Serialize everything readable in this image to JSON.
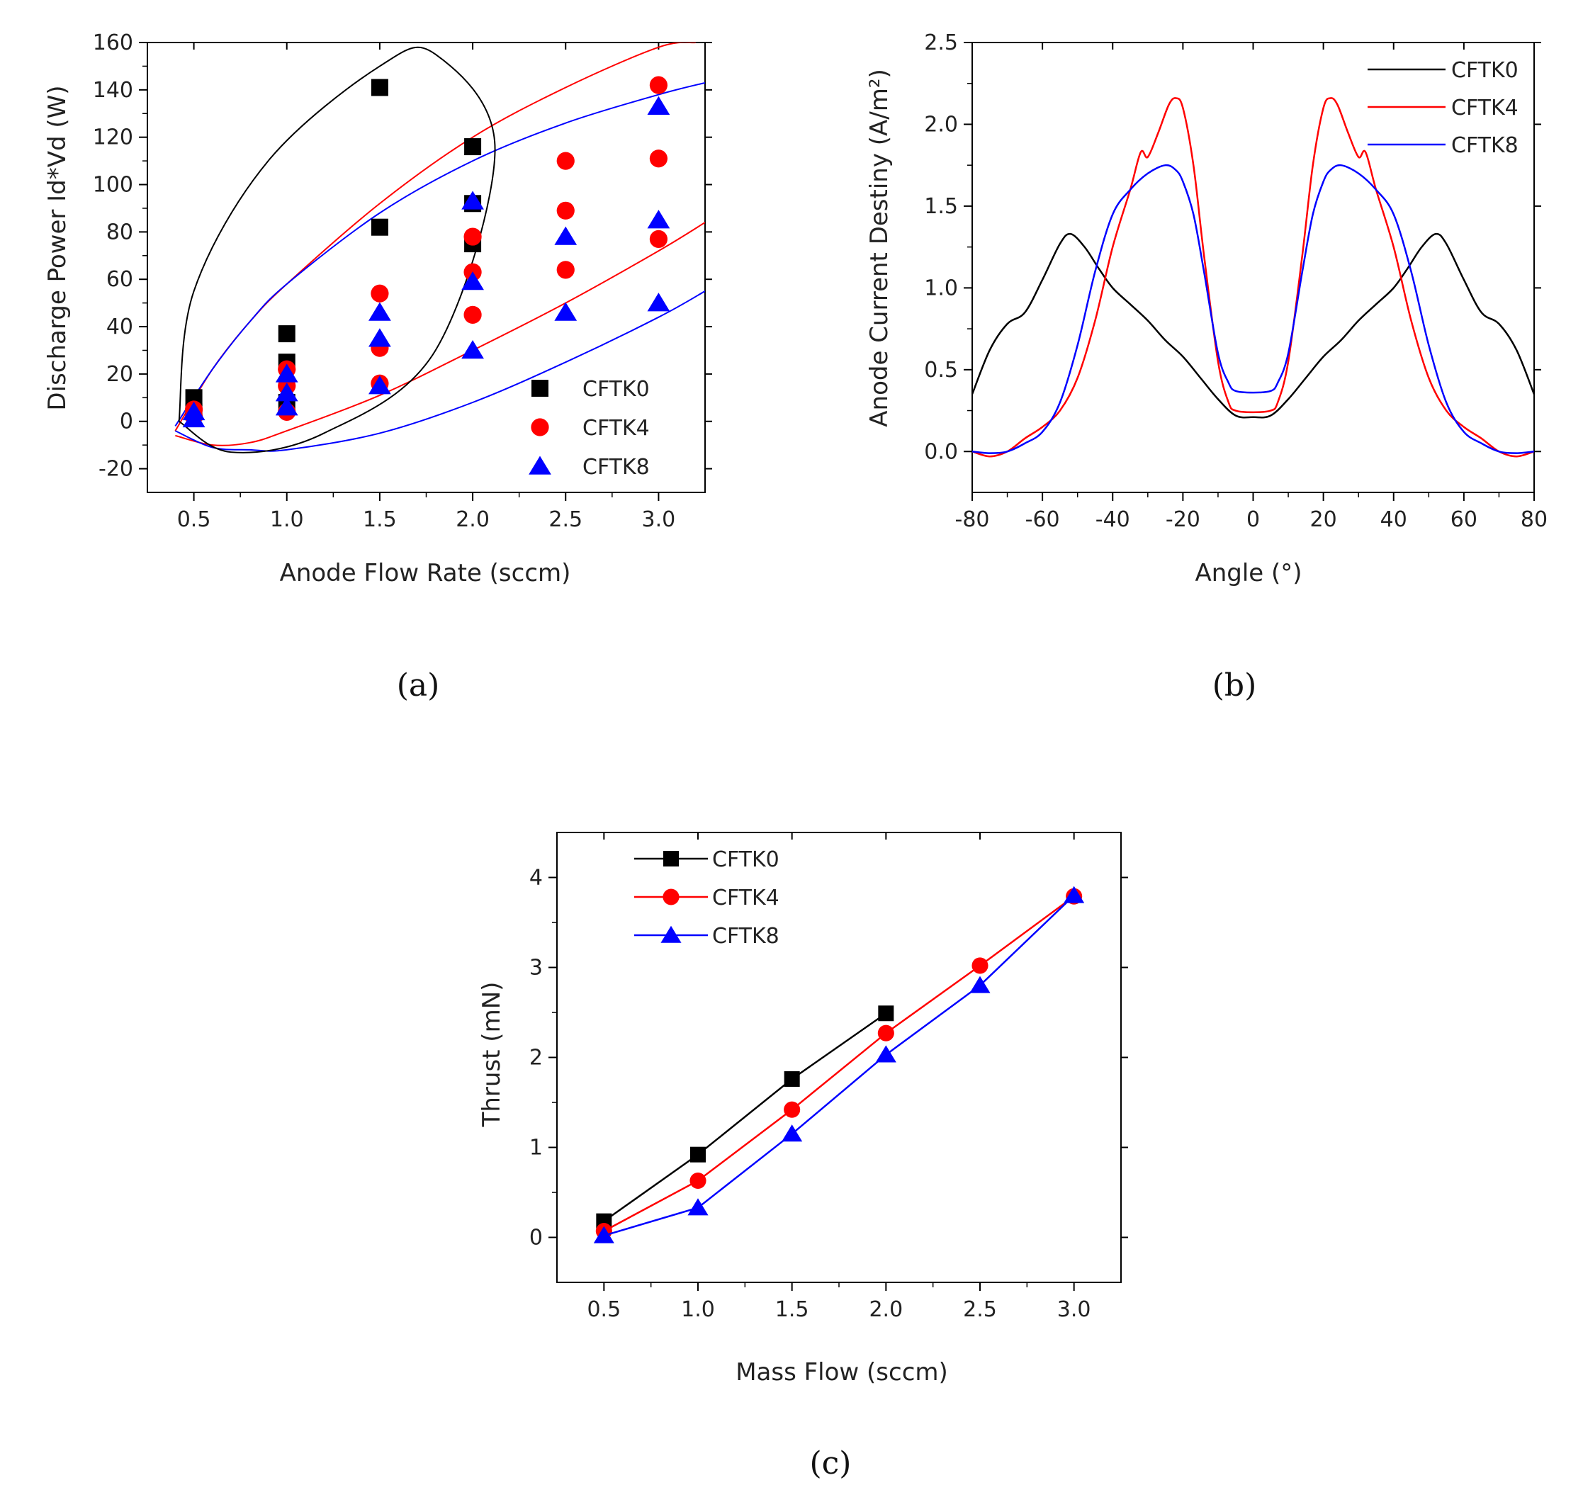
{
  "colors": {
    "CFTK0": "#000000",
    "CFTK4": "#ff0000",
    "CFTK8": "#0000ff"
  },
  "chart_data": [
    {
      "panel": "a",
      "caption": "(a)",
      "type": "scatter",
      "xlabel": "Anode Flow Rate (sccm)",
      "ylabel": "Discharge Power Id*Vd (W)",
      "xlim": [
        0.25,
        3.25
      ],
      "ylim": [
        -30,
        160
      ],
      "xticks": [
        "0.5",
        "1.0",
        "1.5",
        "2.0",
        "2.5",
        "3.0"
      ],
      "yticks": [
        "-20",
        "0",
        "20",
        "40",
        "60",
        "80",
        "100",
        "120",
        "140",
        "160"
      ],
      "legend": [
        "CFTK0",
        "CFTK4",
        "CFTK8"
      ],
      "series": [
        {
          "name": "CFTK0",
          "marker": "square",
          "x": [
            0.5,
            0.5,
            1.0,
            1.0,
            1.0,
            1.5,
            1.5,
            2.0,
            2.0,
            2.0
          ],
          "y": [
            10,
            4,
            37,
            25,
            8,
            141,
            82,
            116,
            92,
            75
          ]
        },
        {
          "name": "CFTK4",
          "marker": "circle",
          "x": [
            0.5,
            0.5,
            1.0,
            1.0,
            1.0,
            1.5,
            1.5,
            1.5,
            2.0,
            2.0,
            2.0,
            2.5,
            2.5,
            2.5,
            3.0,
            3.0,
            3.0
          ],
          "y": [
            5,
            2,
            22,
            15,
            4,
            54,
            31,
            16,
            78,
            63,
            45,
            110,
            89,
            64,
            142,
            111,
            77
          ]
        },
        {
          "name": "CFTK8",
          "marker": "triangle",
          "x": [
            0.5,
            0.5,
            1.0,
            1.0,
            1.0,
            1.5,
            1.5,
            1.5,
            2.0,
            2.0,
            2.0,
            2.5,
            2.5,
            3.0,
            3.0,
            3.0
          ],
          "y": [
            4,
            1,
            20,
            12,
            6,
            46,
            35,
            15,
            93,
            59,
            30,
            78,
            46,
            133,
            85,
            50
          ]
        }
      ],
      "fit_curves": [
        {
          "color": "CFTK4",
          "x": [
            0.4,
            0.6,
            0.8,
            1.0,
            1.5,
            2.0,
            2.5,
            3.0,
            3.2
          ],
          "y": [
            -4,
            22,
            42,
            58,
            92,
            120,
            141,
            158,
            160
          ]
        },
        {
          "color": "CFTK8",
          "x": [
            0.4,
            0.6,
            0.8,
            1.0,
            1.5,
            2.0,
            2.5,
            3.0,
            3.25
          ],
          "y": [
            -2,
            22,
            42,
            58,
            88,
            110,
            126,
            138,
            143
          ]
        },
        {
          "color": "CFTK4",
          "x": [
            0.4,
            0.6,
            0.8,
            1.0,
            1.5,
            2.0,
            2.5,
            3.0,
            3.25
          ],
          "y": [
            -6,
            -10,
            -9,
            -4,
            11,
            30,
            50,
            72,
            84
          ]
        },
        {
          "color": "CFTK8",
          "x": [
            0.4,
            0.6,
            0.8,
            1.0,
            1.5,
            2.0,
            2.5,
            3.0,
            3.25
          ],
          "y": [
            -4,
            -11,
            -12,
            -12,
            -5,
            8,
            25,
            44,
            55
          ]
        }
      ],
      "ellipse": {
        "center": [
          1.25,
          71
        ],
        "points": [
          [
            0.42,
            0
          ],
          [
            0.7,
            -13
          ],
          [
            1.2,
            -5
          ],
          [
            1.8,
            30
          ],
          [
            2.12,
            115
          ],
          [
            1.8,
            155
          ],
          [
            1.5,
            150
          ],
          [
            0.9,
            110
          ],
          [
            0.5,
            55
          ],
          [
            0.42,
            0
          ]
        ]
      }
    },
    {
      "panel": "b",
      "caption": "(b)",
      "type": "line",
      "xlabel": "Angle (°)",
      "ylabel": "Anode Current Destiny (A/m²)",
      "xlim": [
        -80,
        80
      ],
      "ylim": [
        -0.25,
        2.5
      ],
      "xticks": [
        "-80",
        "-60",
        "-40",
        "-20",
        "0",
        "20",
        "40",
        "60",
        "80"
      ],
      "yticks": [
        "0.0",
        "0.5",
        "1.0",
        "1.5",
        "2.0",
        "2.5"
      ],
      "legend": [
        "CFTK0",
        "CFTK4",
        "CFTK8"
      ],
      "series": [
        {
          "name": "CFTK0",
          "x": [
            -80,
            -75,
            -70,
            -65,
            -60,
            -55,
            -52,
            -48,
            -44,
            -40,
            -35,
            -30,
            -25,
            -20,
            -15,
            -10,
            -5,
            0,
            5,
            10,
            15,
            20,
            25,
            30,
            35,
            40,
            44,
            48,
            52,
            55,
            60,
            65,
            70,
            75,
            80
          ],
          "y": [
            0.35,
            0.62,
            0.78,
            0.85,
            1.05,
            1.27,
            1.33,
            1.25,
            1.12,
            1.0,
            0.9,
            0.8,
            0.68,
            0.58,
            0.45,
            0.32,
            0.22,
            0.21,
            0.22,
            0.32,
            0.45,
            0.58,
            0.68,
            0.8,
            0.9,
            1.0,
            1.12,
            1.25,
            1.33,
            1.27,
            1.05,
            0.85,
            0.78,
            0.62,
            0.35
          ]
        },
        {
          "name": "CFTK4",
          "x": [
            -80,
            -75,
            -70,
            -65,
            -60,
            -55,
            -50,
            -45,
            -40,
            -35,
            -32,
            -30,
            -27,
            -24,
            -22,
            -20,
            -17,
            -14,
            -10,
            -7,
            -5,
            0,
            5,
            7,
            10,
            14,
            17,
            20,
            22,
            24,
            27,
            30,
            32,
            35,
            40,
            45,
            50,
            55,
            60,
            65,
            70,
            75,
            80
          ],
          "y": [
            0.0,
            -0.03,
            0.0,
            0.08,
            0.15,
            0.25,
            0.45,
            0.8,
            1.25,
            1.6,
            1.83,
            1.8,
            1.95,
            2.12,
            2.16,
            2.1,
            1.75,
            1.2,
            0.55,
            0.3,
            0.25,
            0.24,
            0.25,
            0.3,
            0.55,
            1.2,
            1.75,
            2.1,
            2.16,
            2.12,
            1.95,
            1.8,
            1.83,
            1.6,
            1.25,
            0.8,
            0.45,
            0.25,
            0.15,
            0.08,
            0.0,
            -0.03,
            0.0
          ]
        },
        {
          "name": "CFTK8",
          "x": [
            -80,
            -75,
            -70,
            -65,
            -60,
            -55,
            -50,
            -45,
            -40,
            -35,
            -30,
            -25,
            -22,
            -20,
            -17,
            -14,
            -10,
            -7,
            -5,
            0,
            5,
            7,
            10,
            14,
            17,
            20,
            22,
            25,
            30,
            35,
            40,
            45,
            50,
            55,
            60,
            65,
            70,
            75,
            80
          ],
          "y": [
            0.0,
            -0.01,
            0.0,
            0.05,
            0.12,
            0.3,
            0.65,
            1.1,
            1.45,
            1.6,
            1.7,
            1.75,
            1.72,
            1.65,
            1.45,
            1.1,
            0.6,
            0.42,
            0.37,
            0.36,
            0.37,
            0.42,
            0.6,
            1.1,
            1.45,
            1.65,
            1.72,
            1.75,
            1.7,
            1.6,
            1.45,
            1.1,
            0.65,
            0.3,
            0.12,
            0.05,
            0.0,
            -0.01,
            0.0
          ]
        }
      ]
    },
    {
      "panel": "c",
      "caption": "(c)",
      "type": "line",
      "xlabel": "Mass Flow (sccm)",
      "ylabel": "Thrust (mN)",
      "xlim": [
        0.25,
        3.25
      ],
      "ylim": [
        -0.5,
        4.5
      ],
      "xticks": [
        "0.5",
        "1.0",
        "1.5",
        "2.0",
        "2.5",
        "3.0"
      ],
      "yticks": [
        "0",
        "1",
        "2",
        "3",
        "4"
      ],
      "legend": [
        "CFTK0",
        "CFTK4",
        "CFTK8"
      ],
      "series": [
        {
          "name": "CFTK0",
          "marker": "square",
          "x": [
            0.5,
            1.0,
            1.5,
            2.0
          ],
          "y": [
            0.18,
            0.92,
            1.76,
            2.49
          ]
        },
        {
          "name": "CFTK4",
          "marker": "circle",
          "x": [
            0.5,
            1.0,
            1.5,
            2.0,
            2.5,
            3.0
          ],
          "y": [
            0.07,
            0.63,
            1.42,
            2.27,
            3.02,
            3.79
          ]
        },
        {
          "name": "CFTK8",
          "marker": "triangle",
          "x": [
            0.5,
            1.0,
            1.5,
            2.0,
            2.5,
            3.0
          ],
          "y": [
            0.02,
            0.33,
            1.15,
            2.03,
            2.8,
            3.8
          ]
        }
      ]
    }
  ]
}
